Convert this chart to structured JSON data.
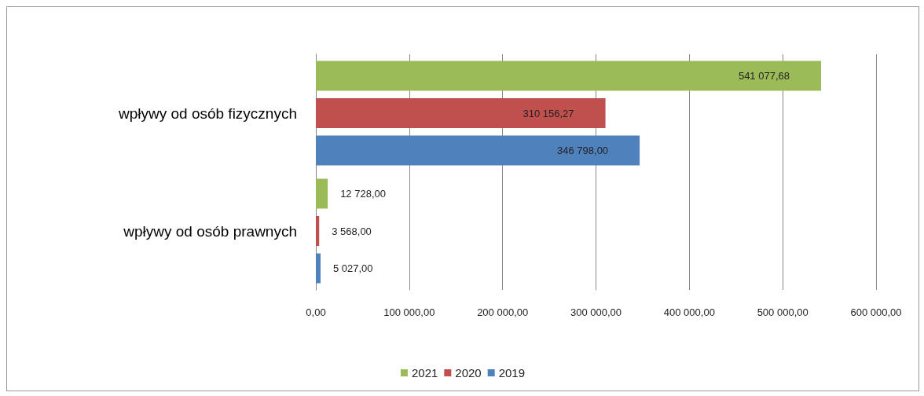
{
  "chart_data": {
    "type": "bar",
    "orientation": "horizontal",
    "categories": [
      "wpływy od osób fizycznych",
      "wpływy od osób prawnych"
    ],
    "series": [
      {
        "name": "2021",
        "color": "#9bbb59",
        "values": [
          541077.68,
          12728
        ],
        "value_labels": [
          "541 077,68",
          "12 728,00"
        ]
      },
      {
        "name": "2020",
        "color": "#c0504d",
        "values": [
          310156.27,
          3568
        ],
        "value_labels": [
          "310 156,27",
          "3 568,00"
        ]
      },
      {
        "name": "2019",
        "color": "#4f81bd",
        "values": [
          346798,
          5027
        ],
        "value_labels": [
          "346 798,00",
          "5 027,00"
        ]
      }
    ],
    "xlim": [
      0,
      600000
    ],
    "xticks": [
      {
        "value": 0,
        "label": "0,00"
      },
      {
        "value": 100000,
        "label": "100 000,00"
      },
      {
        "value": 200000,
        "label": "200 000,00"
      },
      {
        "value": 300000,
        "label": "300 000,00"
      },
      {
        "value": 400000,
        "label": "400 000,00"
      },
      {
        "value": 500000,
        "label": "500 000,00"
      },
      {
        "value": 600000,
        "label": "600 000,00"
      }
    ],
    "grid": "x",
    "legend": "bottom"
  }
}
